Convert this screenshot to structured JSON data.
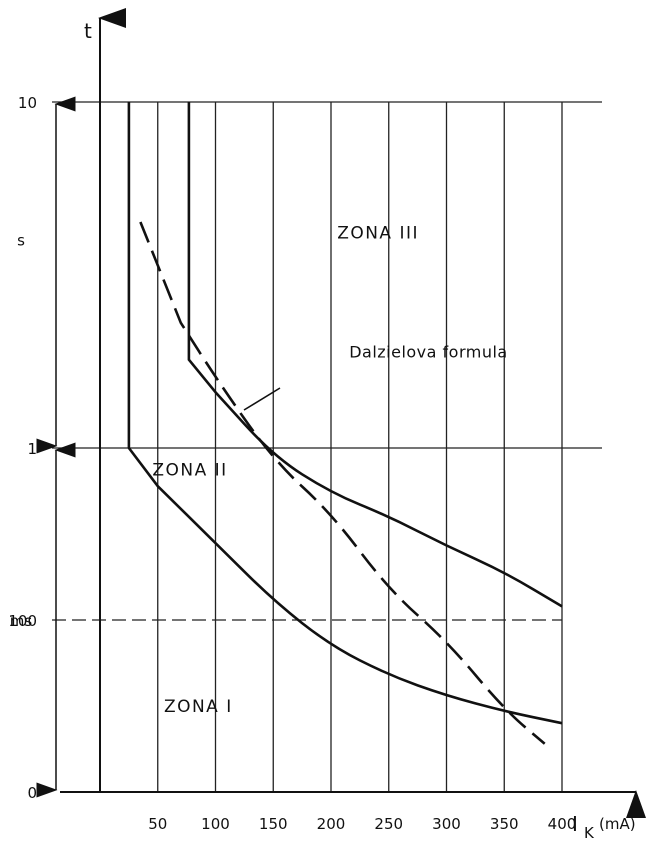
{
  "chart_data": {
    "type": "line",
    "x_axis": {
      "label_main": "I",
      "label_sub": "K",
      "label_unit": "(mA)",
      "ticks": [
        50,
        100,
        150,
        200,
        250,
        300,
        350,
        400
      ],
      "range": [
        0,
        400
      ]
    },
    "y_axis": {
      "label": "t",
      "scale": "piecewise",
      "ticks": [
        {
          "value": "0",
          "t": 0
        },
        {
          "value": "100",
          "t": 0.1
        },
        {
          "value": "1",
          "t": 1
        },
        {
          "value": "10",
          "t": 10
        }
      ],
      "unit_labels": [
        {
          "text": "s",
          "t": 4
        },
        {
          "text": "ms",
          "t": 0.1
        }
      ],
      "range": [
        0,
        10
      ]
    },
    "grid": true,
    "series": [
      {
        "id": "boundary-I-II",
        "style": "solid",
        "points": [
          [
            25,
            10
          ],
          [
            25,
            1
          ],
          [
            50,
            0.6
          ],
          [
            100,
            0.28
          ],
          [
            150,
            0.13
          ],
          [
            200,
            0.085
          ],
          [
            250,
            0.068
          ],
          [
            300,
            0.056
          ],
          [
            350,
            0.047
          ],
          [
            400,
            0.04
          ]
        ]
      },
      {
        "id": "boundary-II-III",
        "style": "solid",
        "points": [
          [
            77,
            10
          ],
          [
            77,
            1.8
          ],
          [
            100,
            1.45
          ],
          [
            150,
            0.9
          ],
          [
            200,
            0.55
          ],
          [
            250,
            0.4
          ],
          [
            300,
            0.27
          ],
          [
            350,
            0.19
          ],
          [
            400,
            0.12
          ]
        ]
      },
      {
        "name": "Dalzielova formula",
        "id": "dalziel",
        "style": "dashed",
        "points": [
          [
            35,
            4.5
          ],
          [
            70,
            2.3
          ],
          [
            100,
            1.6
          ],
          [
            150,
            0.85
          ],
          [
            200,
            0.42
          ],
          [
            250,
            0.15
          ],
          [
            300,
            0.088
          ],
          [
            350,
            0.048
          ],
          [
            385,
            0.028
          ]
        ]
      }
    ],
    "annotations": [
      {
        "text": "ZONA III",
        "x": 240,
        "t": 4.2
      },
      {
        "text": "ZONA II",
        "x": 80,
        "t": 0.75
      },
      {
        "text": "ZONA I",
        "x": 90,
        "t": 0.05
      },
      {
        "text": "Dalzielova formula",
        "x": 240,
        "t": 1.9
      }
    ]
  }
}
